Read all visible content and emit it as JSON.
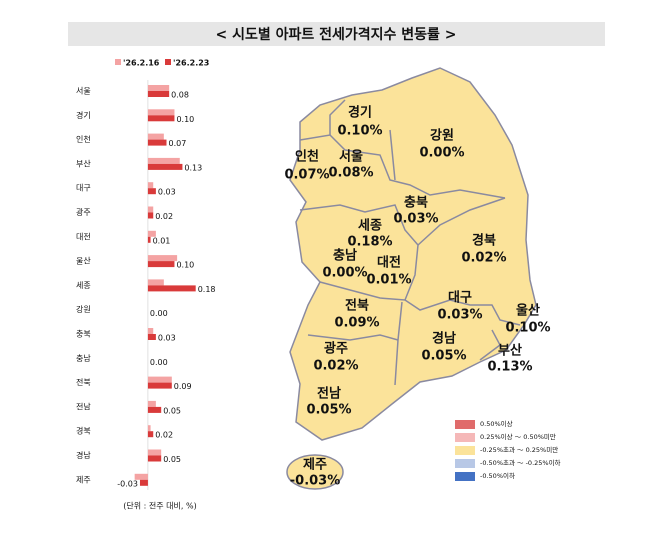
{
  "chart_data": {
    "type": "bar",
    "orientation": "horizontal",
    "title": "< 시도별 아파트 전세가격지수 변동률 >",
    "note": "(단위 : 전주 대비, %)",
    "categories": [
      "서울",
      "경기",
      "인천",
      "부산",
      "대구",
      "광주",
      "대전",
      "울산",
      "세종",
      "강원",
      "충북",
      "충남",
      "전북",
      "전남",
      "경북",
      "경남",
      "제주"
    ],
    "series": [
      {
        "name": "'26.2.16",
        "color": "#f4a3a3",
        "values": [
          0.08,
          0.1,
          0.06,
          0.12,
          0.02,
          0.02,
          0.03,
          0.11,
          0.06,
          0.0,
          0.02,
          0.0,
          0.09,
          0.03,
          0.01,
          0.05,
          -0.05
        ]
      },
      {
        "name": "'26.2.23",
        "color": "#d93a3a",
        "values": [
          0.08,
          0.1,
          0.07,
          0.13,
          0.03,
          0.02,
          0.01,
          0.1,
          0.18,
          0.0,
          0.03,
          0.0,
          0.09,
          0.05,
          0.02,
          0.05,
          -0.03
        ],
        "value_labels": [
          "0.08",
          "0.10",
          "0.07",
          "0.13",
          "0.03",
          "0.02",
          "0.01",
          "0.10",
          "0.18",
          "0.00",
          "0.03",
          "0.00",
          "0.09",
          "0.05",
          "0.02",
          "0.05",
          "-0.03"
        ]
      }
    ],
    "xlim": [
      -0.06,
      0.2
    ]
  },
  "map": {
    "regions": [
      {
        "name": "경기",
        "label": "0.10%"
      },
      {
        "name": "강원",
        "label": "0.00%"
      },
      {
        "name": "인천",
        "label": "0.07%"
      },
      {
        "name": "서울",
        "label": "0.08%"
      },
      {
        "name": "충북",
        "label": "0.03%"
      },
      {
        "name": "세종",
        "label": "0.18%"
      },
      {
        "name": "경북",
        "label": "0.02%"
      },
      {
        "name": "충남",
        "label": "0.00%"
      },
      {
        "name": "대전",
        "label": "0.01%"
      },
      {
        "name": "대구",
        "label": "0.03%"
      },
      {
        "name": "울산",
        "label": "0.10%"
      },
      {
        "name": "전북",
        "label": "0.09%"
      },
      {
        "name": "광주",
        "label": "0.02%"
      },
      {
        "name": "경남",
        "label": "0.05%"
      },
      {
        "name": "부산",
        "label": "0.13%"
      },
      {
        "name": "전남",
        "label": "0.05%"
      },
      {
        "name": "제주",
        "label": "-0.03%"
      }
    ],
    "legend": [
      {
        "label": "0.50%이상",
        "color": "#e06b6b"
      },
      {
        "label": "0.25%이상 ～ 0.50%미만",
        "color": "#f5b8b8"
      },
      {
        "label": "-0.25%초과 ～ 0.25%미만",
        "color": "#fbe39a"
      },
      {
        "label": "-0.50%초과 ～ -0.25%이하",
        "color": "#b8c8e6"
      },
      {
        "label": "-0.50%이하",
        "color": "#4472c4"
      }
    ]
  }
}
